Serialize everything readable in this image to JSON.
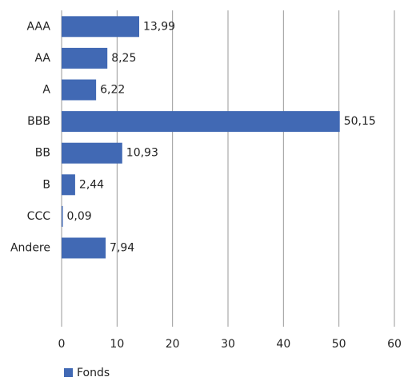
{
  "chart_data": {
    "type": "bar",
    "orientation": "horizontal",
    "categories": [
      "AAA",
      "AA",
      "A",
      "BBB",
      "BB",
      "B",
      "CCC",
      "Andere"
    ],
    "series": [
      {
        "name": "Fonds",
        "color": "#4169b4",
        "values": [
          13.99,
          8.25,
          6.22,
          50.15,
          10.93,
          2.44,
          0.09,
          7.94
        ],
        "value_labels": [
          "13,99",
          "8,25",
          "6,22",
          "50,15",
          "10,93",
          "2,44",
          "0,09",
          "7,94"
        ]
      }
    ],
    "xlim": [
      0,
      60
    ],
    "xticks": [
      0,
      10,
      20,
      30,
      40,
      50,
      60
    ],
    "grid": true,
    "legend": "bottom-left"
  }
}
